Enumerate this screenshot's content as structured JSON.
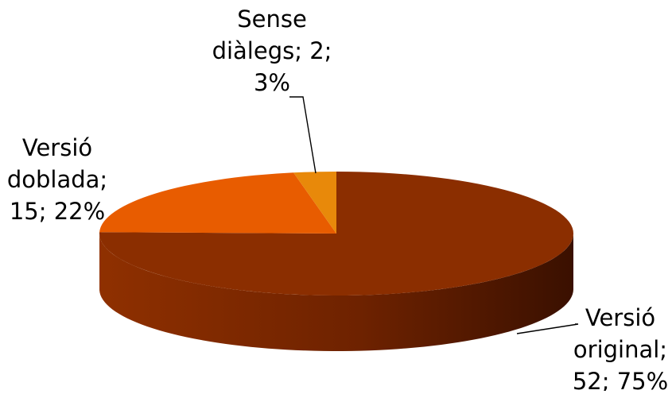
{
  "chart_data": {
    "type": "pie",
    "style": "3d",
    "title": "",
    "slices": [
      {
        "label": "Versió original",
        "value": 52,
        "percent": "75%",
        "color": "#8B2E00",
        "label_lines": [
          "Versió",
          "original;",
          "52; 75%"
        ]
      },
      {
        "label": "Versió doblada",
        "value": 15,
        "percent": "22%",
        "color": "#E85C00",
        "label_lines": [
          "Versió",
          "doblada;",
          "15; 22%"
        ]
      },
      {
        "label": "Sense diàlegs",
        "value": 2,
        "percent": "3%",
        "color": "#E8890A",
        "label_lines": [
          "Sense",
          "diàlegs; 2;",
          "3%"
        ]
      }
    ]
  }
}
